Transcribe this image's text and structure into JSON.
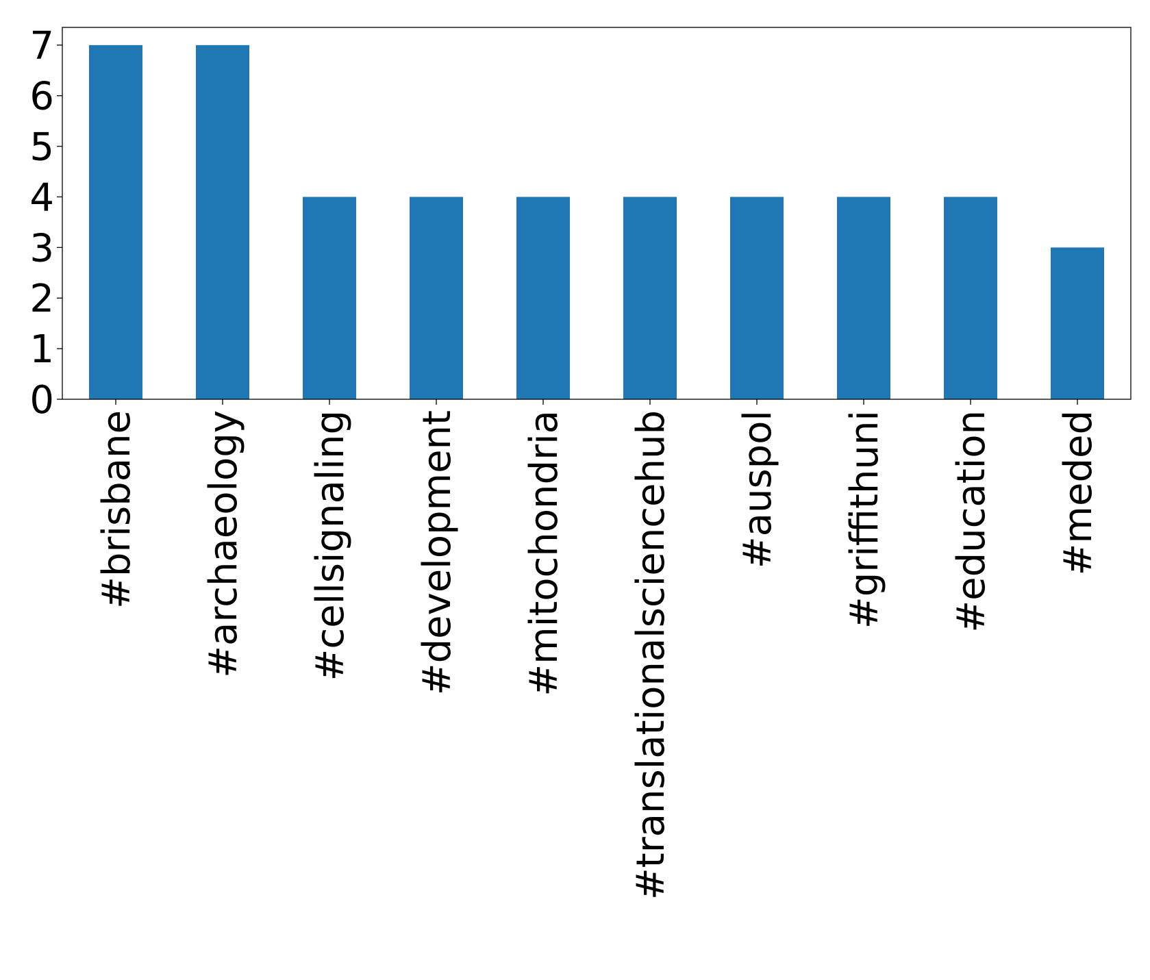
{
  "chart_data": {
    "type": "bar",
    "title": "",
    "xlabel": "",
    "ylabel": "",
    "categories": [
      "#brisbane",
      "#archaeology",
      "#cellsignaling",
      "#development",
      "#mitochondria",
      "#translationalsciencehub",
      "#auspol",
      "#griffithuni",
      "#education",
      "#meded"
    ],
    "values": [
      7,
      7,
      4,
      4,
      4,
      4,
      4,
      4,
      4,
      3
    ],
    "ylim": [
      0,
      7.35
    ],
    "yticks": [
      0,
      1,
      2,
      3,
      4,
      5,
      6,
      7
    ],
    "grid": false,
    "legend": null,
    "bar_color": "#1f77b4"
  }
}
